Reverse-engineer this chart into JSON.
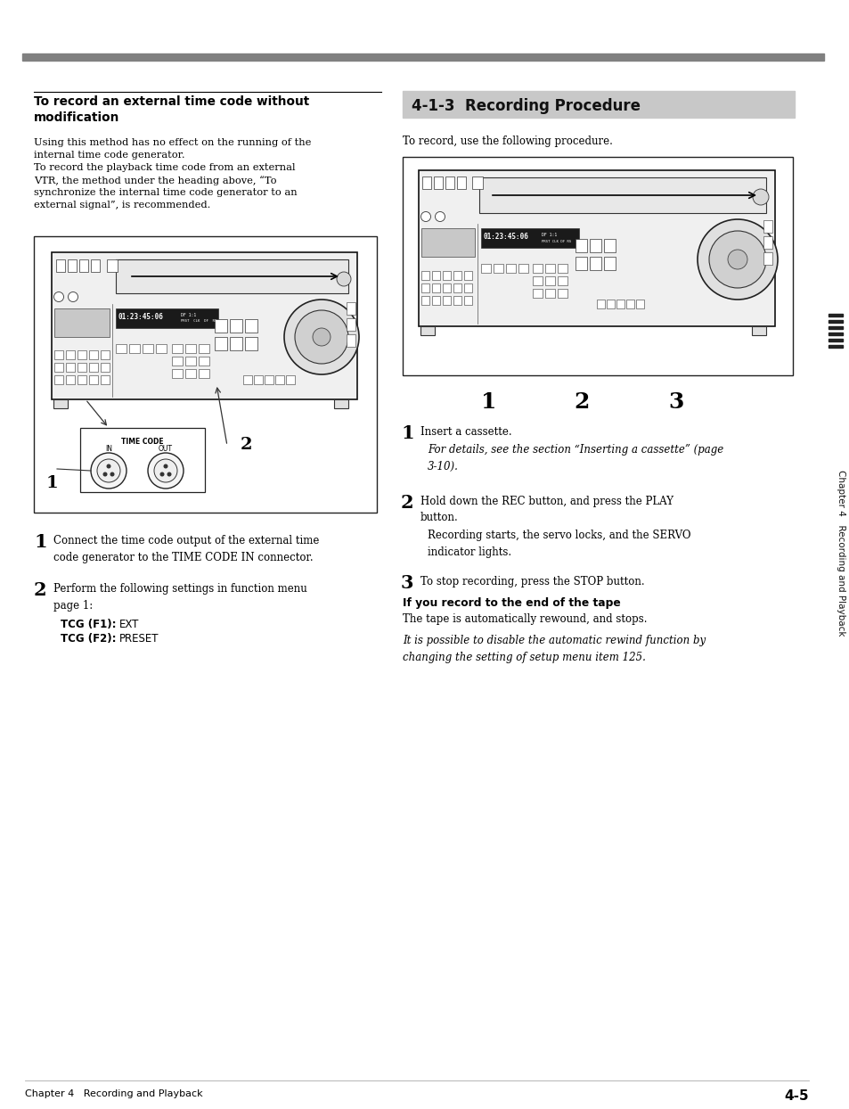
{
  "page_bg": "#ffffff",
  "top_bar_color": "#808080",
  "section_header_bg": "#c8c8c8",
  "section_header_text": "4-1-3  Recording Procedure",
  "left_title_line1": "To record an external time code without",
  "left_title_line2": "modification",
  "left_body": "Using this method has no effect on the running of the\ninternal time code generator.\nTo record the playback time code from an external\nVTR, the method under the heading above, “To\nsynchronize the internal time code generator to an\nexternal signal”, is recommended.",
  "left_step1_num": "1",
  "left_step1_text": "Connect the time code output of the external time\ncode generator to the TIME CODE IN connector.",
  "left_step2_num": "2",
  "left_step2_text": "Perform the following settings in function menu\npage 1:",
  "left_tcg1_bold": "TCG (F1):",
  "left_tcg1_normal": " EXT",
  "left_tcg2_bold": "TCG (F2):",
  "left_tcg2_normal": " PRESET",
  "right_intro": "To record, use the following procedure.",
  "right_step1_num": "1",
  "right_step1_text": "Insert a cassette.",
  "right_step1_italic": "For details, see the section “Inserting a cassette” (page\n3-10).",
  "right_step2_num": "2",
  "right_step2_text": "Hold down the REC button, and press the PLAY\nbutton.",
  "right_step2_detail": "Recording starts, the servo locks, and the SERVO\nindicator lights.",
  "right_step3_num": "3",
  "right_step3_text": "To stop recording, press the STOP button.",
  "right_bold_head": "If you record to the end of the tape",
  "right_bold_body": "The tape is automatically rewound, and stops.",
  "right_italic_note": "It is possible to disable the automatic rewind function by\nchanging the setting of setup menu item 125.",
  "footer_left": "Chapter 4   Recording and Playback",
  "footer_right": "4-5",
  "sidebar_text": "Chapter 4   Recording and Playback",
  "text_color": "#000000",
  "serif_font": "DejaVu Serif",
  "sans_font": "DejaVu Sans"
}
